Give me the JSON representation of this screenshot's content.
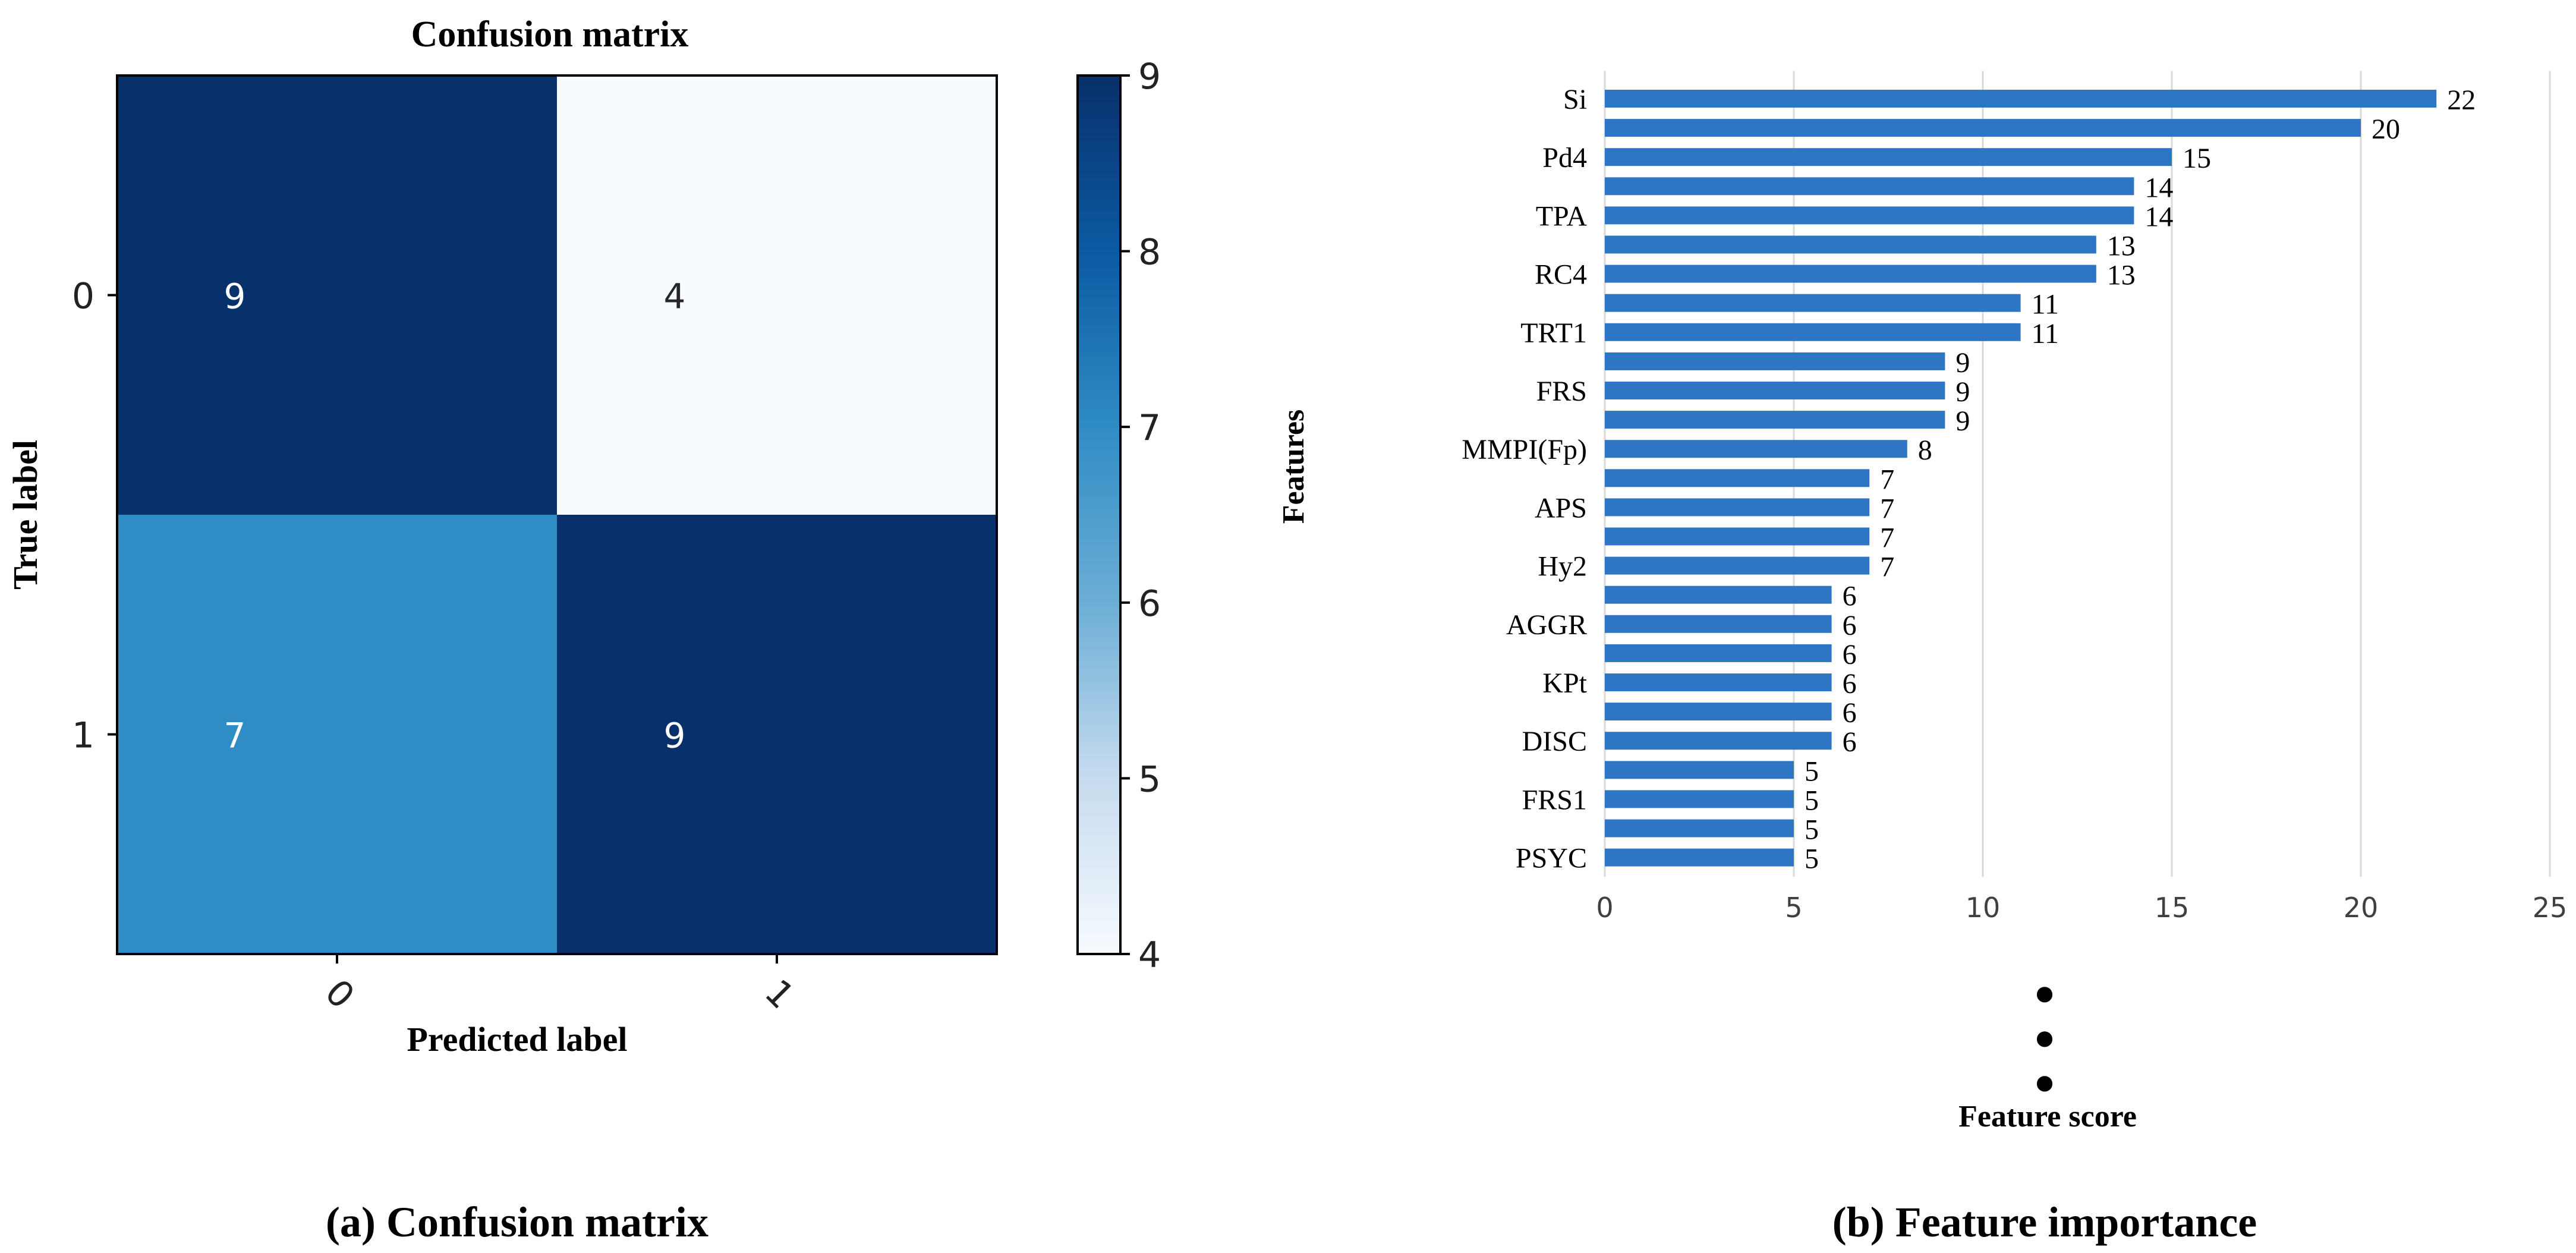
{
  "chart_data": [
    {
      "type": "heatmap",
      "title": "Confusion matrix",
      "xlabel": "Predicted label",
      "ylabel": "True label",
      "x_tick_labels": [
        "0",
        "1"
      ],
      "y_tick_labels": [
        "0",
        "1"
      ],
      "values": [
        [
          9,
          4
        ],
        [
          7,
          9
        ]
      ],
      "colorbar": {
        "min": 4,
        "max": 9,
        "ticks": [
          4,
          5,
          6,
          7,
          8,
          9
        ],
        "colormap": "Blues"
      },
      "caption": "(a) Confusion matrix"
    },
    {
      "type": "bar",
      "orientation": "horizontal",
      "xlabel": "Feature score",
      "ylabel": "Features",
      "xlim": [
        0,
        25
      ],
      "x_ticks": [
        "0",
        "5",
        "10",
        "15",
        "20",
        "25"
      ],
      "grid": true,
      "bar_color": "#2e75c3",
      "values": [
        22,
        20,
        15,
        14,
        14,
        13,
        13,
        11,
        11,
        9,
        9,
        9,
        8,
        7,
        7,
        7,
        7,
        6,
        6,
        6,
        6,
        6,
        6,
        5,
        5,
        5,
        5
      ],
      "category_labels": [
        "Si",
        "",
        "Pd4",
        "",
        "TPA",
        "",
        "RC4",
        "",
        "TRT1",
        "",
        "FRS",
        "",
        "MMPI(Fp)",
        "",
        "APS",
        "",
        "Hy2",
        "",
        "AGGR",
        "",
        "KPt",
        "",
        "DISC",
        "",
        "FRS1",
        "",
        "PSYC"
      ],
      "continuation": "•",
      "caption": "(b) Feature importance"
    }
  ]
}
